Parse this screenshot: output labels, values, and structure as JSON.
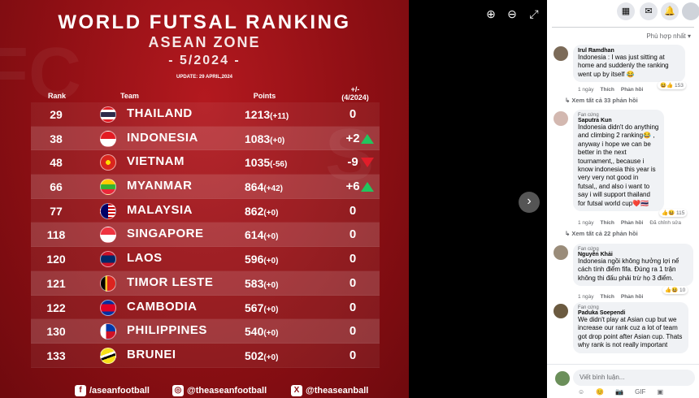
{
  "poster": {
    "title": "WORLD FUTSAL RANKING",
    "subtitle": "ASEAN ZONE",
    "period": "- 5/2024 -",
    "update": "UPDATE: 29 APRIL,2024",
    "headers": {
      "rank": "Rank",
      "team": "Team",
      "points": "Points",
      "change": "+/-",
      "change_sub": "(4/2024)"
    },
    "rows": [
      {
        "rank": "29",
        "team": "THAILAND",
        "points": "1213",
        "delta": "(+11)",
        "change": "0",
        "arrow": ""
      },
      {
        "rank": "38",
        "team": "INDONESIA",
        "points": "1083",
        "delta": "(+0)",
        "change": "+2",
        "arrow": "up"
      },
      {
        "rank": "48",
        "team": "VIETNAM",
        "points": "1035",
        "delta": "(-56)",
        "change": "-9",
        "arrow": "down"
      },
      {
        "rank": "66",
        "team": "MYANMAR",
        "points": "864",
        "delta": "(+42)",
        "change": "+6",
        "arrow": "up"
      },
      {
        "rank": "77",
        "team": "MALAYSIA",
        "points": "862",
        "delta": "(+0)",
        "change": "0",
        "arrow": ""
      },
      {
        "rank": "118",
        "team": "SINGAPORE",
        "points": "614",
        "delta": "(+0)",
        "change": "0",
        "arrow": ""
      },
      {
        "rank": "120",
        "team": "LAOS",
        "points": "596",
        "delta": "(+0)",
        "change": "0",
        "arrow": ""
      },
      {
        "rank": "121",
        "team": "TIMOR LESTE",
        "points": "583",
        "delta": "(+0)",
        "change": "0",
        "arrow": ""
      },
      {
        "rank": "122",
        "team": "CAMBODIA",
        "points": "567",
        "delta": "(+0)",
        "change": "0",
        "arrow": ""
      },
      {
        "rank": "130",
        "team": "PHILIPPINES",
        "points": "540",
        "delta": "(+0)",
        "change": "0",
        "arrow": ""
      },
      {
        "rank": "133",
        "team": "BRUNEI",
        "points": "502",
        "delta": "(+0)",
        "change": "0",
        "arrow": ""
      }
    ],
    "socials": {
      "facebook": "/aseanfootball",
      "instagram": "@theaseanfootball",
      "x": "@theaseanball"
    }
  },
  "panel": {
    "sort": "Phù hợp nhất",
    "comments": [
      {
        "fan": "",
        "name": "Irul Ramdhan",
        "text": "Indonesia : I was just sitting at home and suddenly the ranking went up by itself 😂",
        "time": "1 ngày",
        "like": "Thích",
        "reply": "Phản hồi",
        "reactions": "153",
        "view_all": "Xem tất cả 33 phản hồi"
      },
      {
        "fan": "Fan cứng",
        "name": "Saputra Kun",
        "text": "Indonesia didn't do anything and climbing 2 ranking😂 , anyway i hope we can be better in the next tournament,, because i know indonesia this year is very very not good in futsal,, and also i want to say i will support thailand for futsal world cup❤️🇹🇭",
        "time": "1 ngày",
        "like": "Thích",
        "reply": "Phản hồi",
        "edited": "Đã chỉnh sửa",
        "reactions": "115",
        "view_all": "Xem tất cả 22 phản hồi"
      },
      {
        "fan": "Fan cứng",
        "name": "Nguyễn Khải",
        "text": "Indonesia ngồi không hưởng lợi nể cách tính điểm fifa. Đúng ra 1 trận không thi đấu phải trừ họ 3 điểm.",
        "time": "1 ngày",
        "like": "Thích",
        "reply": "Phản hồi",
        "reactions": "10"
      },
      {
        "fan": "Fan cứng",
        "name": "Paduka Soependi",
        "text": "We didn't play at Asian cup but we increase our rank cuz a lot of team got drop point after Asian cup. Thats why rank is not really important",
        "time": "",
        "like": "",
        "reply": "",
        "reactions": ""
      }
    ],
    "composer_placeholder": "Viết bình luận..."
  }
}
